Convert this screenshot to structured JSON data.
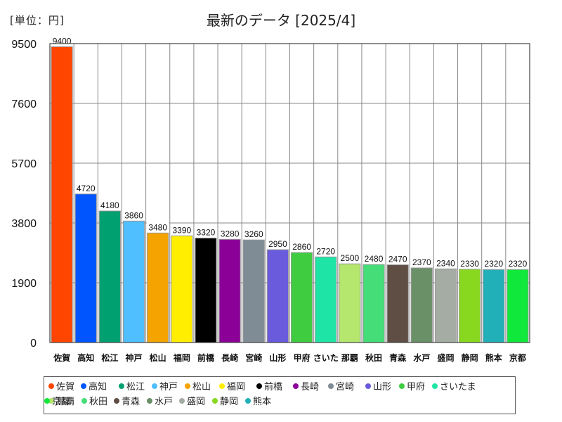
{
  "header": {
    "unit": "[単位：円]"
  },
  "chart_data": {
    "type": "bar",
    "title": "最新のデータ [2025/4]",
    "xlabel": "",
    "ylabel": "",
    "ylim": [
      0,
      9500
    ],
    "yticks": [
      0,
      1900,
      3800,
      5700,
      7600,
      9500
    ],
    "grid": true,
    "legend_position": "bottom",
    "categories": [
      "佐賀",
      "高知",
      "松江",
      "神戸",
      "松山",
      "福岡",
      "前橋",
      "長崎",
      "宮崎",
      "山形",
      "甲府",
      "さいたま",
      "那覇",
      "秋田",
      "青森",
      "水戸",
      "盛岡",
      "静岡",
      "熊本",
      "京都"
    ],
    "tick_labels": [
      "佐賀",
      "高知",
      "松江",
      "神戸",
      "松山",
      "福岡",
      "前橋",
      "長崎",
      "宮崎",
      "山形",
      "甲府",
      "さいた",
      "那覇",
      "秋田",
      "青森",
      "水戸",
      "盛岡",
      "静岡",
      "熊本",
      "京都"
    ],
    "values": [
      9400,
      4720,
      4180,
      3860,
      3480,
      3390,
      3320,
      3280,
      3260,
      2950,
      2860,
      2720,
      2500,
      2480,
      2470,
      2370,
      2340,
      2330,
      2320,
      2320
    ],
    "colors": [
      "#ff4500",
      "#0055ff",
      "#00a070",
      "#50bfff",
      "#f5a300",
      "#ffee00",
      "#000000",
      "#8b0096",
      "#7f8c96",
      "#6a5adc",
      "#40cc40",
      "#1ee5a5",
      "#b5e66e",
      "#44dd77",
      "#5e4e44",
      "#6a9068",
      "#a4aca4",
      "#88d820",
      "#22b0b8",
      "#11e83c"
    ]
  }
}
